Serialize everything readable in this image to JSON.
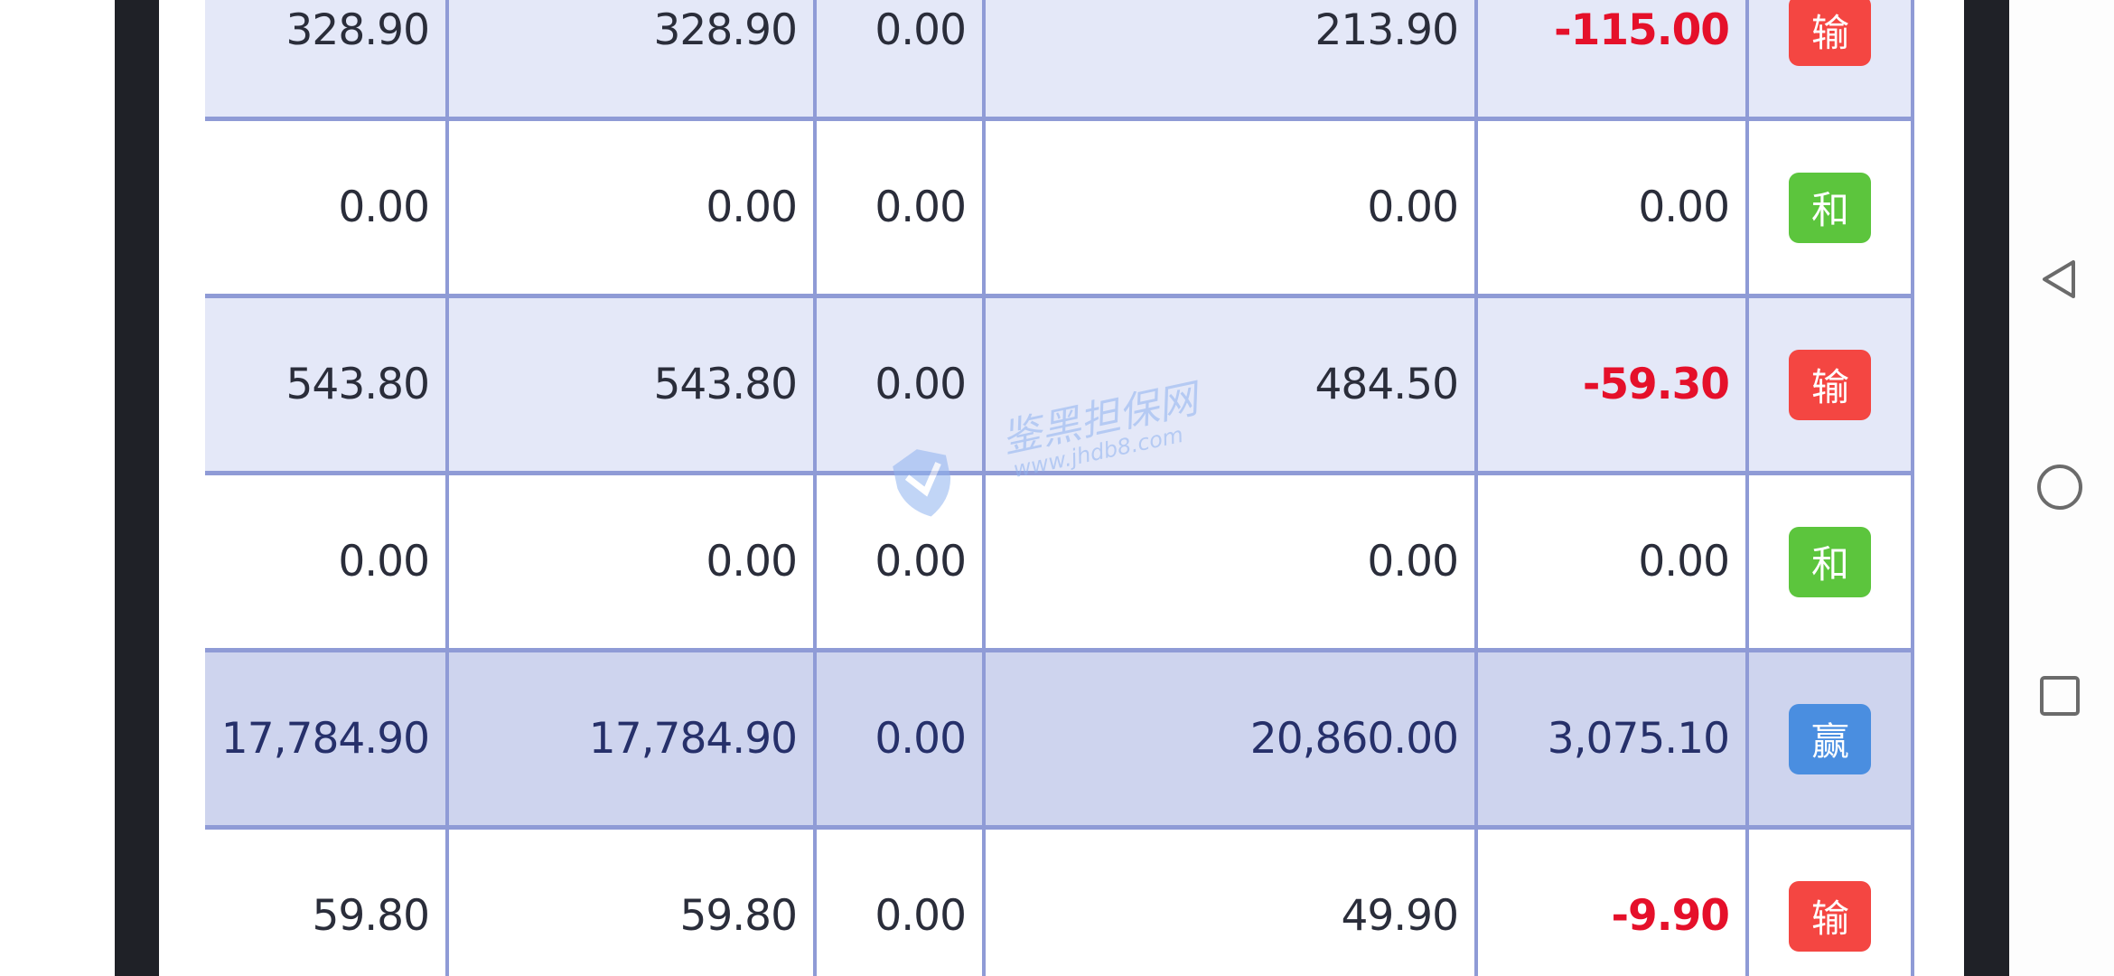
{
  "table": {
    "rows": [
      {
        "style": "alt",
        "cells": [
          "328.90",
          "328.90",
          "0.00",
          "213.90",
          "-115.00"
        ],
        "result": "输",
        "result_type": "lose"
      },
      {
        "style": "plain",
        "cells": [
          "0.00",
          "0.00",
          "0.00",
          "0.00",
          "0.00"
        ],
        "result": "和",
        "result_type": "draw"
      },
      {
        "style": "alt",
        "cells": [
          "543.80",
          "543.80",
          "0.00",
          "484.50",
          "-59.30"
        ],
        "result": "输",
        "result_type": "lose"
      },
      {
        "style": "plain",
        "cells": [
          "0.00",
          "0.00",
          "0.00",
          "0.00",
          "0.00"
        ],
        "result": "和",
        "result_type": "draw"
      },
      {
        "style": "total",
        "cells": [
          "17,784.90",
          "17,784.90",
          "0.00",
          "20,860.00",
          "3,075.10"
        ],
        "result": "赢",
        "result_type": "win"
      },
      {
        "style": "plain",
        "cells": [
          "59.80",
          "59.80",
          "0.00",
          "49.90",
          "-9.90"
        ],
        "result": "输",
        "result_type": "lose"
      }
    ]
  },
  "colors": {
    "lose": "#f44642",
    "draw": "#5cc53d",
    "win": "#4a8ee0",
    "negative": "#e5102a",
    "grid": "#8f9bd6"
  },
  "watermark": {
    "name": "鉴黑担保网",
    "url": "www.jhdb8.com"
  },
  "nav": {
    "back": "back-icon",
    "home": "home-icon",
    "recents": "recents-icon"
  }
}
